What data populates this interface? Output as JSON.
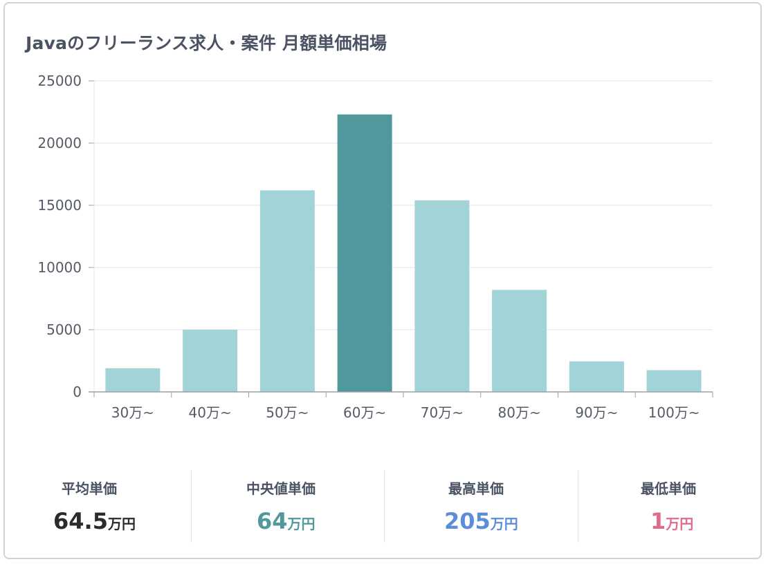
{
  "chart_data": {
    "type": "bar",
    "title": "Javaのフリーランス求人・案件 月額単価相場",
    "categories": [
      "30万~",
      "40万~",
      "50万~",
      "60万~",
      "70万~",
      "80万~",
      "90万~",
      "100万~"
    ],
    "values": [
      1900,
      5000,
      16200,
      22300,
      15400,
      8200,
      2450,
      1750
    ],
    "ylim": [
      0,
      25000
    ],
    "yticks": [
      0,
      5000,
      10000,
      15000,
      20000,
      25000
    ],
    "xlabel": "",
    "ylabel": "",
    "grid": true,
    "highlight_category": "60万~",
    "colors": {
      "bar": "#a1d3d7",
      "bar_highlight": "#51989d",
      "grid": "#e4e6e8",
      "axis": "#9aa0a6",
      "tick_text": "#555b66"
    }
  },
  "stats": [
    {
      "label": "平均単価",
      "value": "64.5",
      "unit": "万円",
      "color": "#2b2b2b"
    },
    {
      "label": "中央値単価",
      "value": "64",
      "unit": "万円",
      "color": "#51989d"
    },
    {
      "label": "最高単価",
      "value": "205",
      "unit": "万円",
      "color": "#5b8dd9"
    },
    {
      "label": "最低単価",
      "value": "1",
      "unit": "万円",
      "color": "#e06b8b"
    }
  ]
}
